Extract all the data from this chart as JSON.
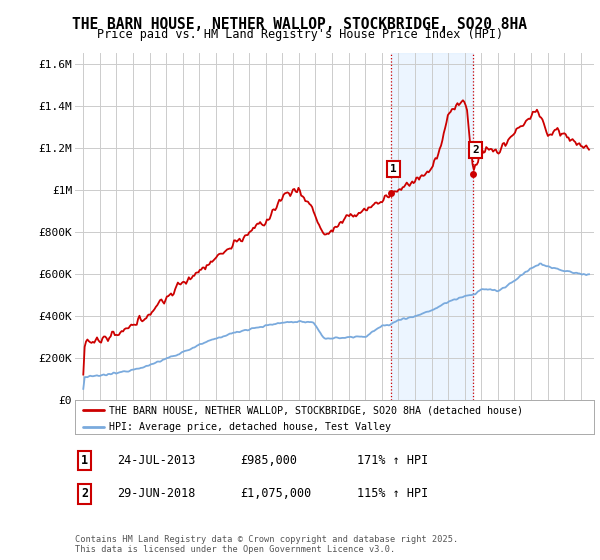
{
  "title": "THE BARN HOUSE, NETHER WALLOP, STOCKBRIDGE, SO20 8HA",
  "subtitle": "Price paid vs. HM Land Registry's House Price Index (HPI)",
  "legend_house": "THE BARN HOUSE, NETHER WALLOP, STOCKBRIDGE, SO20 8HA (detached house)",
  "legend_hpi": "HPI: Average price, detached house, Test Valley",
  "annotation1_date": "24-JUL-2013",
  "annotation1_price": "£985,000",
  "annotation1_hpi": "171% ↑ HPI",
  "annotation2_date": "29-JUN-2018",
  "annotation2_price": "£1,075,000",
  "annotation2_hpi": "115% ↑ HPI",
  "footnote": "Contains HM Land Registry data © Crown copyright and database right 2025.\nThis data is licensed under the Open Government Licence v3.0.",
  "house_color": "#cc0000",
  "hpi_color": "#7aaadd",
  "bg_color": "#ffffff",
  "grid_color": "#cccccc",
  "ylim": [
    0,
    1650000
  ],
  "yticks": [
    0,
    200000,
    400000,
    600000,
    800000,
    1000000,
    1200000,
    1400000,
    1600000
  ],
  "ytick_labels": [
    "£0",
    "£200K",
    "£400K",
    "£600K",
    "£800K",
    "£1M",
    "£1.2M",
    "£1.4M",
    "£1.6M"
  ],
  "sale1_x": 2013.56,
  "sale1_y": 985000,
  "sale2_x": 2018.49,
  "sale2_y": 1075000,
  "xlim": [
    1994.5,
    2025.8
  ],
  "shade_color": "#ddeeff",
  "shade_alpha": 0.55
}
